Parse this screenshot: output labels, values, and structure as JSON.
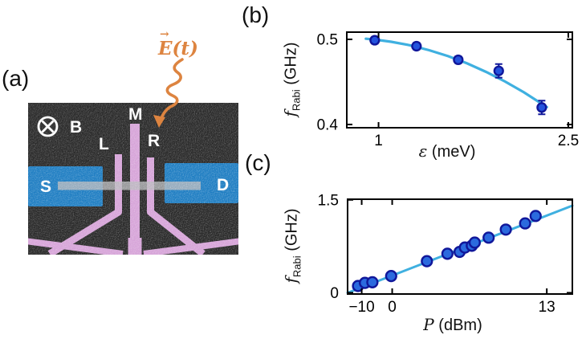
{
  "panels": {
    "a": {
      "letter": "(a)"
    },
    "b": {
      "letter": "(b)"
    },
    "c": {
      "letter": "(c)"
    }
  },
  "device": {
    "labels": {
      "field": "B",
      "gate_left": "L",
      "gate_middle": "M",
      "gate_right": "R",
      "source": "S",
      "drain": "D"
    },
    "efield": {
      "arrow": "→",
      "symbol": "E",
      "argument": "(t)"
    },
    "colors": {
      "background": "#282828",
      "contact_blue": "#1e7dc2",
      "gate_pink": "#d6a3d8",
      "nanowire_gray": "#b9babd",
      "annotation_white": "#ffffff",
      "efield_orange": "#dd8440"
    }
  },
  "chart_data": [
    {
      "id": "b",
      "type": "scatter",
      "xlabel_var": "ε",
      "xlabel_unit": " (meV)",
      "ylabel_var": "f",
      "ylabel_sub": "Rabi",
      "ylabel_unit": " (GHz)",
      "xlim": [
        0.749,
        2.532
      ],
      "ylim": [
        0.3962,
        0.5085
      ],
      "xticks": [
        {
          "v": 1,
          "label": "1"
        },
        {
          "v": 2.5,
          "label": "2.5"
        }
      ],
      "yticks": [
        {
          "v": 0.4,
          "label": "0.4"
        },
        {
          "v": 0.5,
          "label": "0.5"
        }
      ],
      "points": {
        "eps_meV": [
          0.97,
          1.3,
          1.63,
          1.95,
          2.29
        ],
        "f_GHz": [
          0.499,
          0.492,
          0.476,
          0.463,
          0.42
        ],
        "err_GHz": [
          0.004,
          0.004,
          0.004,
          0.008,
          0.008
        ]
      },
      "fit_curve": {
        "eps_meV": [
          0.9,
          1.0,
          1.1,
          1.25,
          1.4,
          1.55,
          1.7,
          1.85,
          2.0,
          2.15,
          2.33
        ],
        "f_GHz": [
          0.5008,
          0.4992,
          0.4972,
          0.493,
          0.4873,
          0.4803,
          0.4718,
          0.4618,
          0.4505,
          0.4377,
          0.4205
        ]
      },
      "colors": {
        "marker": "#2453dd",
        "marker_edge": "#10179a",
        "line": "#3fb0e0",
        "frame": "#000000"
      }
    },
    {
      "id": "c",
      "type": "scatter",
      "xlabel_var": "P",
      "xlabel_unit": " (dBm)",
      "ylabel_var": "f",
      "ylabel_sub": "Rabi",
      "ylabel_unit": " (GHz)",
      "x_scale_note": "axis linear in drive amplitude a = 10^(P/20)",
      "xlim_amplitude": [
        0,
        5.04
      ],
      "ylim": [
        -0.02,
        1.51
      ],
      "xticks": [
        {
          "P_dBm": -10,
          "label": "−10"
        },
        {
          "P_dBm": 0,
          "label": "0"
        },
        {
          "P_dBm": 13,
          "label": "13"
        }
      ],
      "yticks": [
        {
          "v": 0,
          "label": "0"
        },
        {
          "v": 1.5,
          "label": "1.5"
        }
      ],
      "points": {
        "P_dBm": [
          -12.6,
          -8.2,
          -5.1,
          -0.2,
          5.0,
          7.0,
          8.0,
          8.4,
          8.9,
          9.1,
          10.0,
          11.0,
          12.0,
          12.5
        ],
        "f_GHz": [
          0.11,
          0.16,
          0.17,
          0.27,
          0.51,
          0.63,
          0.66,
          0.73,
          0.76,
          0.81,
          0.89,
          1.02,
          1.12,
          1.24
        ]
      },
      "fit_line": {
        "amplitude": [
          0,
          5.04
        ],
        "f_GHz": [
          0,
          1.406
        ]
      },
      "colors": {
        "marker": "#2b6ade",
        "marker_edge": "#10179a",
        "line": "#3fb0e0",
        "frame": "#000000"
      }
    }
  ]
}
